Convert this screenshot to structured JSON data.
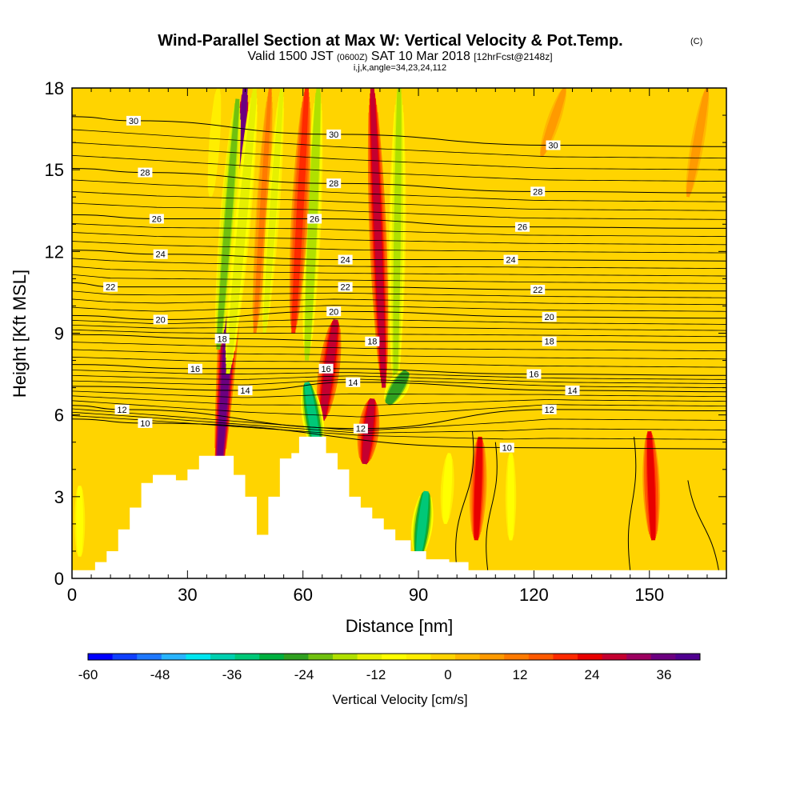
{
  "chart_data": {
    "type": "heatmap",
    "title": "Wind-Parallel Section at Max W: Vertical Velocity & Pot.Temp.",
    "title_mark": "(C)",
    "subtitle_parts": [
      "Valid 1500 JST",
      "(0600Z)",
      "SAT 10 Mar 2018",
      "[12hrFcst@2148z]"
    ],
    "subtitle2": "i,j,k,angle=34,23,24,112",
    "xlabel": "Distance [nm]",
    "ylabel": "Height [Kft MSL]",
    "xlim": [
      0,
      170
    ],
    "ylim": [
      0,
      18
    ],
    "x_ticks": [
      0,
      30,
      60,
      90,
      120,
      150
    ],
    "y_ticks": [
      0,
      3,
      6,
      9,
      12,
      15,
      18
    ],
    "colorbar": {
      "label": "Vertical Velocity [cm/s]",
      "min": -60,
      "max": 42,
      "step": 4,
      "tick_labels": [
        "-60",
        "-48",
        "-36",
        "-24",
        "-12",
        "0",
        "12",
        "24",
        "36"
      ],
      "tick_values": [
        -60,
        -48,
        -36,
        -24,
        -12,
        0,
        12,
        24,
        36
      ],
      "colors": [
        "#0000ff",
        "#1040ff",
        "#1e78ff",
        "#28b4ff",
        "#00e6f0",
        "#00d0b0",
        "#00c878",
        "#00b040",
        "#30a020",
        "#70c010",
        "#b0e000",
        "#e6f000",
        "#ffff00",
        "#ffee00",
        "#ffd400",
        "#ffb800",
        "#ff9a00",
        "#ff7a00",
        "#ff5a00",
        "#ff2a00",
        "#e80000",
        "#c40030",
        "#9c0060",
        "#6c0080",
        "#500090"
      ]
    },
    "wbands": [
      {
        "x0": 38,
        "y0": 3.6,
        "x1": 45,
        "y1": 18,
        "w": 34,
        "name": "Updraft"
      },
      {
        "x0": 38,
        "y0": 8.4,
        "x1": 43,
        "y1": 17.6,
        "w": -22,
        "name": "Downdraft"
      },
      {
        "x0": 40.5,
        "y0": 7.5,
        "x1": 47.5,
        "y1": 18,
        "w": -16,
        "name": "Downdraft"
      },
      {
        "x0": 47.5,
        "y0": 9,
        "x1": 51.5,
        "y1": 18,
        "w": 8,
        "name": "Updraft"
      },
      {
        "x0": 50,
        "y0": 9,
        "x1": 54.5,
        "y1": 18,
        "w": -14,
        "name": "Downdraft"
      },
      {
        "x0": 61,
        "y0": 8,
        "x1": 64,
        "y1": 18,
        "w": -20,
        "name": "Downdraft"
      },
      {
        "x0": 57.5,
        "y0": 9,
        "x1": 61,
        "y1": 18,
        "w": 18,
        "name": "Updraft"
      },
      {
        "x0": 65,
        "y0": 5.8,
        "x1": 68.5,
        "y1": 9.5,
        "w": 26,
        "name": "Updraft"
      },
      {
        "x0": 81,
        "y0": 7,
        "x1": 78,
        "y1": 18,
        "w": 24,
        "name": "Updraft"
      },
      {
        "x0": 84,
        "y0": 7,
        "x1": 85,
        "y1": 18,
        "w": -18,
        "name": "Downdraft"
      },
      {
        "x0": 82,
        "y0": 6.4,
        "x1": 87,
        "y1": 7.6,
        "w": -28,
        "name": "Downdraft"
      },
      {
        "x0": 76,
        "y0": 4.2,
        "x1": 78,
        "y1": 6.6,
        "w": 26,
        "name": "Updraft"
      },
      {
        "x0": 90,
        "y0": 0.8,
        "x1": 92,
        "y1": 3.2,
        "w": -34,
        "name": "Downdraft"
      },
      {
        "x0": 97,
        "y0": 2,
        "x1": 98,
        "y1": 4.6,
        "w": -12,
        "name": "Downdraft"
      },
      {
        "x0": 105,
        "y0": 1.4,
        "x1": 106,
        "y1": 5.2,
        "w": 20,
        "name": "Updraft"
      },
      {
        "x0": 114,
        "y0": 1.4,
        "x1": 114,
        "y1": 4.6,
        "w": -10,
        "name": "Downdraft"
      },
      {
        "x0": 151,
        "y0": 1.4,
        "x1": 150,
        "y1": 5.4,
        "w": 22,
        "name": "Updraft"
      },
      {
        "x0": 2,
        "y0": 0.8,
        "x1": 2,
        "y1": 3.4,
        "w": -10,
        "name": "Downdraft"
      },
      {
        "x0": 64,
        "y0": 4.6,
        "x1": 61,
        "y1": 7.2,
        "w": -34,
        "name": "Downdraft"
      },
      {
        "x0": 36,
        "y0": 14,
        "x1": 38,
        "y1": 18,
        "w": -8,
        "name": "Downdraft"
      },
      {
        "x0": 122,
        "y0": 15.5,
        "x1": 128,
        "y1": 18,
        "w": 6,
        "name": "Updraft"
      },
      {
        "x0": 160,
        "y0": 14,
        "x1": 165,
        "y1": 18,
        "w": 6,
        "name": "Updraft"
      }
    ],
    "theta_contour_labels": [
      {
        "value": "30",
        "x": 16,
        "y": 16.8
      },
      {
        "value": "28",
        "x": 19,
        "y": 14.9
      },
      {
        "value": "26",
        "x": 22,
        "y": 13.2
      },
      {
        "value": "24",
        "x": 23,
        "y": 11.9
      },
      {
        "value": "22",
        "x": 10,
        "y": 10.7
      },
      {
        "value": "20",
        "x": 23,
        "y": 9.5
      },
      {
        "value": "18",
        "x": 39,
        "y": 8.8
      },
      {
        "value": "16",
        "x": 32,
        "y": 7.7
      },
      {
        "value": "14",
        "x": 45,
        "y": 6.9
      },
      {
        "value": "12",
        "x": 13,
        "y": 6.2
      },
      {
        "value": "10",
        "x": 19,
        "y": 5.7
      },
      {
        "value": "30",
        "x": 68,
        "y": 16.3
      },
      {
        "value": "28",
        "x": 68,
        "y": 14.5
      },
      {
        "value": "26",
        "x": 63,
        "y": 13.2
      },
      {
        "value": "24",
        "x": 71,
        "y": 11.7
      },
      {
        "value": "22",
        "x": 71,
        "y": 10.7
      },
      {
        "value": "20",
        "x": 68,
        "y": 9.8
      },
      {
        "value": "18",
        "x": 78,
        "y": 8.7
      },
      {
        "value": "16",
        "x": 66,
        "y": 7.7
      },
      {
        "value": "14",
        "x": 73,
        "y": 7.2
      },
      {
        "value": "12",
        "x": 75,
        "y": 5.5
      },
      {
        "value": "10",
        "x": 113,
        "y": 4.8
      },
      {
        "value": "30",
        "x": 125,
        "y": 15.9
      },
      {
        "value": "28",
        "x": 121,
        "y": 14.2
      },
      {
        "value": "26",
        "x": 117,
        "y": 12.9
      },
      {
        "value": "24",
        "x": 114,
        "y": 11.7
      },
      {
        "value": "22",
        "x": 121,
        "y": 10.6
      },
      {
        "value": "20",
        "x": 124,
        "y": 9.6
      },
      {
        "value": "18",
        "x": 124,
        "y": 8.7
      },
      {
        "value": "16",
        "x": 120,
        "y": 7.5
      },
      {
        "value": "14",
        "x": 130,
        "y": 6.9
      },
      {
        "value": "12",
        "x": 124,
        "y": 6.2
      }
    ],
    "terrain_profile": [
      [
        0,
        0.3
      ],
      [
        6,
        0.3
      ],
      [
        6,
        0.6
      ],
      [
        9,
        0.6
      ],
      [
        9,
        1.0
      ],
      [
        12,
        1.0
      ],
      [
        12,
        1.8
      ],
      [
        15,
        1.8
      ],
      [
        15,
        2.6
      ],
      [
        18,
        2.6
      ],
      [
        18,
        3.5
      ],
      [
        21,
        3.5
      ],
      [
        21,
        3.8
      ],
      [
        27,
        3.8
      ],
      [
        27,
        3.6
      ],
      [
        30,
        3.6
      ],
      [
        30,
        4.0
      ],
      [
        33,
        4.0
      ],
      [
        33,
        4.5
      ],
      [
        36,
        4.5
      ],
      [
        36,
        4.5
      ],
      [
        42,
        4.5
      ],
      [
        42,
        3.8
      ],
      [
        45,
        3.8
      ],
      [
        45,
        3.0
      ],
      [
        48,
        3.0
      ],
      [
        48,
        1.6
      ],
      [
        51,
        1.6
      ],
      [
        51,
        3.0
      ],
      [
        54,
        3.0
      ],
      [
        54,
        4.4
      ],
      [
        57,
        4.4
      ],
      [
        57,
        4.6
      ],
      [
        59,
        4.6
      ],
      [
        59,
        5.2
      ],
      [
        66,
        5.2
      ],
      [
        66,
        4.6
      ],
      [
        69,
        4.6
      ],
      [
        69,
        4.0
      ],
      [
        72,
        4.0
      ],
      [
        72,
        3.0
      ],
      [
        75,
        3.0
      ],
      [
        75,
        2.6
      ],
      [
        78,
        2.6
      ],
      [
        78,
        2.2
      ],
      [
        81,
        2.2
      ],
      [
        81,
        1.8
      ],
      [
        84,
        1.8
      ],
      [
        84,
        1.4
      ],
      [
        88,
        1.4
      ],
      [
        88,
        1.0
      ],
      [
        92,
        1.0
      ],
      [
        92,
        0.7
      ],
      [
        98,
        0.7
      ],
      [
        98,
        0.6
      ],
      [
        103,
        0.6
      ],
      [
        103,
        0.3
      ],
      [
        170,
        0.3
      ]
    ]
  }
}
